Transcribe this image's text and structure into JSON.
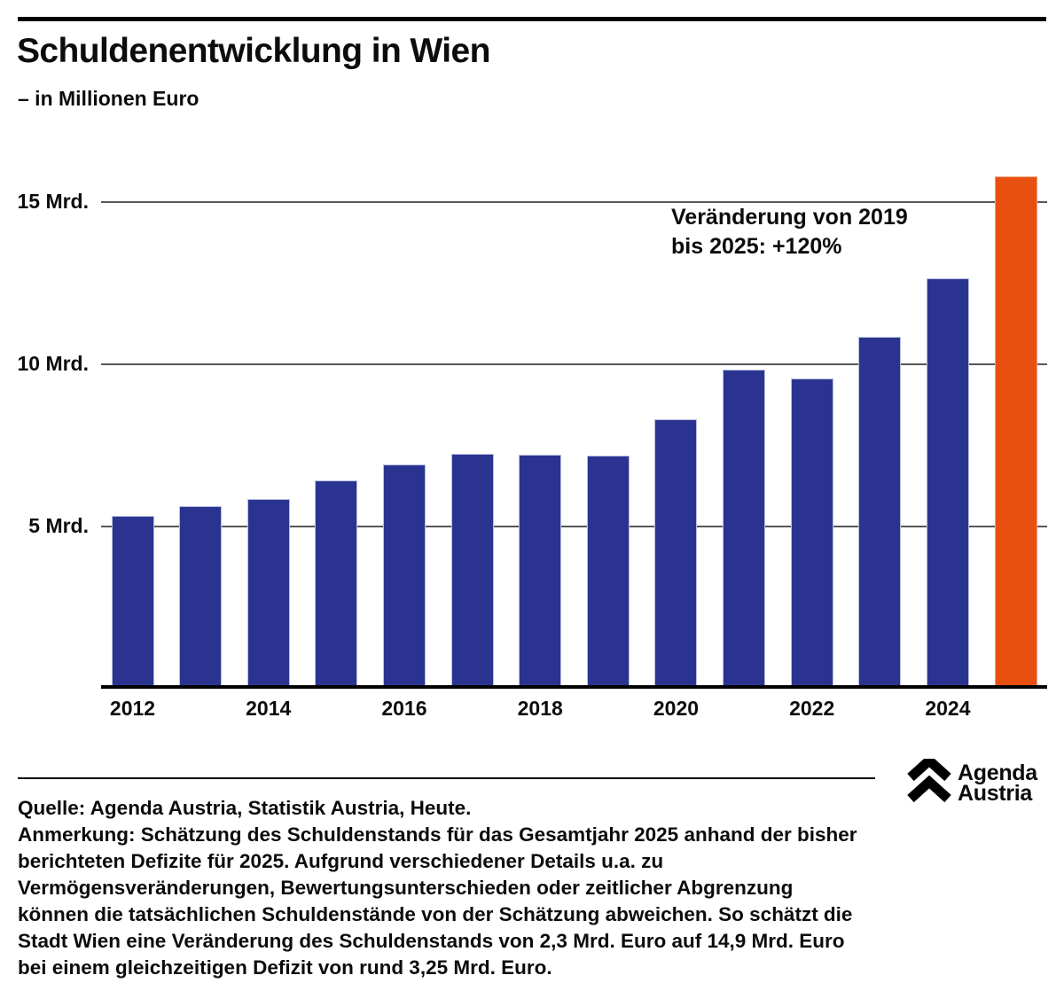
{
  "header": {
    "title": "Schuldenentwicklung in Wien",
    "subtitle": "– in Millionen Euro"
  },
  "chart_data": {
    "type": "bar",
    "title": "Schuldenentwicklung in Wien",
    "subtitle": "– in Millionen Euro",
    "unit": "Millionen Euro",
    "categories": [
      "2012",
      "2013",
      "2014",
      "2015",
      "2016",
      "2017",
      "2018",
      "2019",
      "2020",
      "2021",
      "2022",
      "2023",
      "2024",
      "2025"
    ],
    "values": [
      5340,
      5630,
      5840,
      6420,
      6910,
      7250,
      7220,
      7180,
      8300,
      9850,
      9560,
      10860,
      12650,
      15800
    ],
    "highlight_category": "2025",
    "highlight_index": 13,
    "annotation": "Veränderung von 2019 bis 2025: +120%",
    "annotation_lines": [
      "Veränderung von 2019",
      "bis 2025: +120%"
    ],
    "xtick_labels": [
      "2012",
      "2014",
      "2016",
      "2018",
      "2020",
      "2022",
      "2024"
    ],
    "ytick_labels": [
      "5 Mrd.",
      "10 Mrd.",
      "15 Mrd."
    ],
    "ytick_values_mio": [
      5000,
      10000,
      15000
    ],
    "ylim_mio": [
      0,
      16050
    ],
    "grid": "horizontal",
    "legend": "none",
    "colors": {
      "bar_blue": "#2a3490",
      "bar_highlight_orange": "#e8500f",
      "gridline_gray": "#57575a",
      "axis_black": "#000000"
    }
  },
  "footer": {
    "source": "Quelle: Agenda Austria, Statistik Austria, Heute.",
    "note_lines": [
      "Anmerkung: Schätzung des Schuldenstands für das Gesamtjahr 2025 anhand der bisher",
      "berichteten Defizite für 2025. Aufgrund verschiedener Details u.a. zu",
      "Vermögensveränderungen, Bewertungsunterschieden oder zeitlicher Abgrenzung",
      "können die tatsächlichen Schuldenstände von der Schätzung abweichen. So schätzt die",
      "Stadt Wien eine Veränderung des Schuldenstands von 2,3 Mrd. Euro auf 14,9 Mrd. Euro",
      "bei einem gleichzeitigen Defizit von rund 3,25 Mrd. Euro."
    ],
    "logo": {
      "line1": "Agenda",
      "line2": "Austria"
    }
  }
}
